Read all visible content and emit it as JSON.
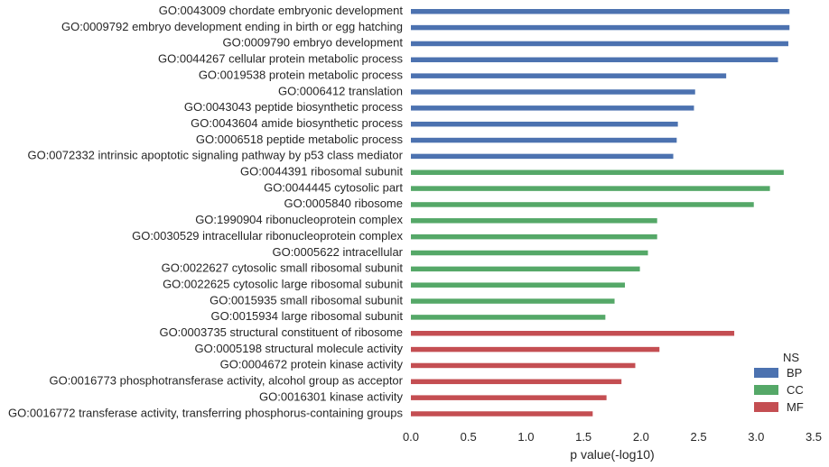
{
  "chart_data": {
    "type": "bar",
    "orientation": "horizontal",
    "xlabel": "p value(-log10)",
    "xlim": [
      0.0,
      3.5
    ],
    "xticks": [
      "0.0",
      "0.5",
      "1.0",
      "1.5",
      "2.0",
      "2.5",
      "3.0",
      "3.5"
    ],
    "grid": false,
    "legend": {
      "title": "NS",
      "placement": "bottom-right",
      "entries": [
        {
          "name": "BP",
          "color": "#4c72b0"
        },
        {
          "name": "CC",
          "color": "#55a868"
        },
        {
          "name": "MF",
          "color": "#c44e52"
        }
      ]
    },
    "bars": [
      {
        "label": "GO:0043009 chordate embryonic development",
        "value": 3.29,
        "group": "BP"
      },
      {
        "label": "GO:0009792 embryo development ending in birth or egg hatching",
        "value": 3.29,
        "group": "BP"
      },
      {
        "label": "GO:0009790 embryo development",
        "value": 3.28,
        "group": "BP"
      },
      {
        "label": "GO:0044267 cellular protein metabolic process",
        "value": 3.19,
        "group": "BP"
      },
      {
        "label": "GO:0019538 protein metabolic process",
        "value": 2.74,
        "group": "BP"
      },
      {
        "label": "GO:0006412 translation",
        "value": 2.47,
        "group": "BP"
      },
      {
        "label": "GO:0043043 peptide biosynthetic process",
        "value": 2.46,
        "group": "BP"
      },
      {
        "label": "GO:0043604 amide biosynthetic process",
        "value": 2.32,
        "group": "BP"
      },
      {
        "label": "GO:0006518 peptide metabolic process",
        "value": 2.31,
        "group": "BP"
      },
      {
        "label": "GO:0072332 intrinsic apoptotic signaling pathway by p53 class mediator",
        "value": 2.28,
        "group": "BP"
      },
      {
        "label": "GO:0044391 ribosomal subunit",
        "value": 3.24,
        "group": "CC"
      },
      {
        "label": "GO:0044445 cytosolic part",
        "value": 3.12,
        "group": "CC"
      },
      {
        "label": "GO:0005840 ribosome",
        "value": 2.98,
        "group": "CC"
      },
      {
        "label": "GO:1990904 ribonucleoprotein complex",
        "value": 2.14,
        "group": "CC"
      },
      {
        "label": "GO:0030529 intracellular ribonucleoprotein complex",
        "value": 2.14,
        "group": "CC"
      },
      {
        "label": "GO:0005622 intracellular",
        "value": 2.06,
        "group": "CC"
      },
      {
        "label": "GO:0022627 cytosolic small ribosomal subunit",
        "value": 1.99,
        "group": "CC"
      },
      {
        "label": "GO:0022625 cytosolic large ribosomal subunit",
        "value": 1.86,
        "group": "CC"
      },
      {
        "label": "GO:0015935 small ribosomal subunit",
        "value": 1.77,
        "group": "CC"
      },
      {
        "label": "GO:0015934 large ribosomal subunit",
        "value": 1.69,
        "group": "CC"
      },
      {
        "label": "GO:0003735 structural constituent of ribosome",
        "value": 2.81,
        "group": "MF"
      },
      {
        "label": "GO:0005198 structural molecule activity",
        "value": 2.16,
        "group": "MF"
      },
      {
        "label": "GO:0004672 protein kinase activity",
        "value": 1.95,
        "group": "MF"
      },
      {
        "label": "GO:0016773 phosphotransferase activity, alcohol group as acceptor",
        "value": 1.83,
        "group": "MF"
      },
      {
        "label": "GO:0016301 kinase activity",
        "value": 1.7,
        "group": "MF"
      },
      {
        "label": "GO:0016772 transferase activity, transferring phosphorus-containing groups",
        "value": 1.58,
        "group": "MF"
      }
    ]
  }
}
